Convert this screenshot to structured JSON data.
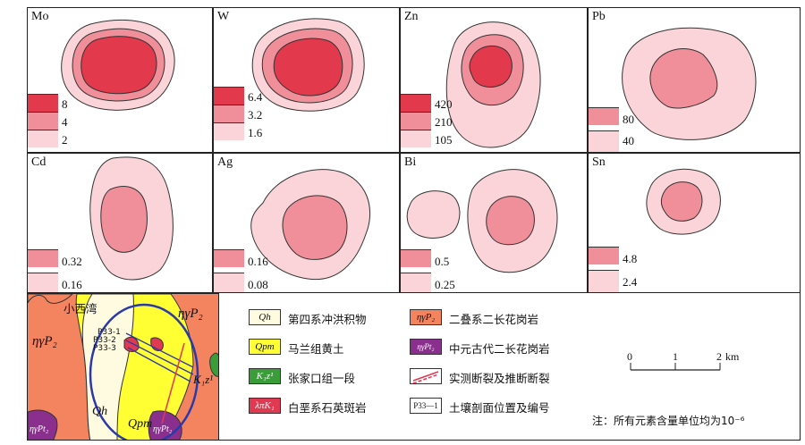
{
  "panels": [
    {
      "element": "Mo",
      "legend": [
        "8",
        "4",
        "2"
      ]
    },
    {
      "element": "W",
      "legend": [
        "6.4",
        "3.2",
        "1.6"
      ]
    },
    {
      "element": "Zn",
      "legend": [
        "420",
        "210",
        "105"
      ]
    },
    {
      "element": "Pb",
      "legend": [
        "80",
        "40"
      ]
    },
    {
      "element": "Cd",
      "legend": [
        "0.32",
        "0.16"
      ]
    },
    {
      "element": "Ag",
      "legend": [
        "0.16",
        "0.08"
      ]
    },
    {
      "element": "Bi",
      "legend": [
        "0.5",
        "0.25"
      ]
    },
    {
      "element": "Sn",
      "legend": [
        "4.8",
        "2.4"
      ]
    }
  ],
  "colors": {
    "high": "#e23a4c",
    "mid": "#f08f9a",
    "low": "#fbd4da",
    "granite": "#f4845f",
    "loess": "#ffff33",
    "quaternary": "#fffbe0",
    "zhangjiakou": "#3a9d3a",
    "quartz": "#e03a52",
    "proterozoic": "#8b2f8f",
    "outline": "#2a3aa8"
  },
  "geo_map": {
    "place_label": "小西湾",
    "units": [
      "ηγP₂",
      "ηγP₂",
      "Qh",
      "Qpm",
      "K₁z¹",
      "ηγPt₂",
      "ηγPt₂"
    ],
    "profiles": [
      "P33-1",
      "P33-2",
      "P33-3"
    ]
  },
  "legend_items": [
    {
      "code": "Qh",
      "text": "第四系冲洪积物"
    },
    {
      "code": "Qpm",
      "text": "马兰组黄土"
    },
    {
      "code": "K₁z¹",
      "text": "张家口组一段"
    },
    {
      "code": "λπK₁",
      "text": "白垩系石英斑岩"
    },
    {
      "code": "ηγP₂",
      "text": "二叠系二长花岗岩"
    },
    {
      "code": "ηγPt₂",
      "text": "中元古代二长花岗岩"
    },
    {
      "code": "",
      "text": "实测断裂及推断断裂"
    },
    {
      "code": "P33—1",
      "text": "土壤剖面位置及编号"
    }
  ],
  "scale": {
    "ticks": [
      "0",
      "1",
      "2"
    ],
    "unit": "km"
  },
  "note": "注：所有元素含量单位均为10⁻⁶"
}
